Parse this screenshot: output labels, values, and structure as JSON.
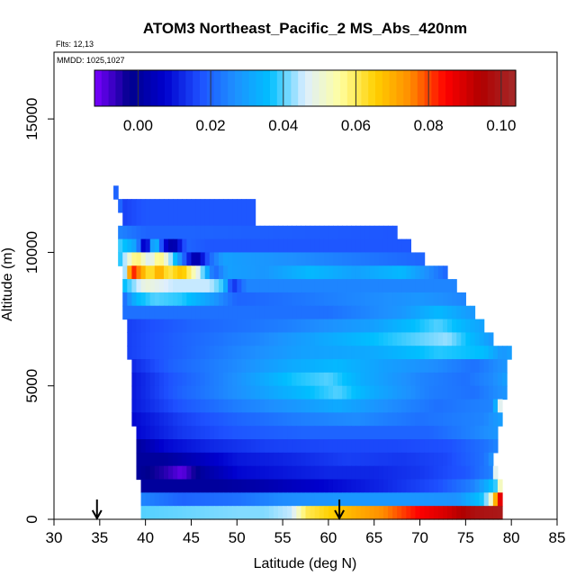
{
  "chart_data": {
    "type": "heatmap",
    "title": "ATOM3 Northeast_Pacific_2 MS_Abs_420nm",
    "flights_label": "Flts: 12,13",
    "dates_label": "MMDD: 1025,1027",
    "xlabel": "Latitude (deg N)",
    "ylabel": "Altitude (m)",
    "xlim": [
      30,
      85
    ],
    "ylim": [
      0,
      17500
    ],
    "x_ticks": [
      "30",
      "35",
      "40",
      "45",
      "50",
      "55",
      "60",
      "65",
      "70",
      "75",
      "80",
      "85"
    ],
    "y_ticks": [
      "0",
      "5000",
      "10000",
      "15000"
    ],
    "colorbar": {
      "range": [
        -0.012,
        0.104
      ],
      "ticks": [
        "0.00",
        "0.02",
        "0.04",
        "0.06",
        "0.08",
        "0.10"
      ],
      "colors": [
        "#7a00ff",
        "#00008c",
        "#0000cd",
        "#1e50ff",
        "#1e90ff",
        "#00bfff",
        "#ddeeff",
        "#ffffa0",
        "#ffd000",
        "#ff8c00",
        "#ff0000",
        "#b00000",
        "#a52a2a"
      ]
    },
    "flight_markers_latitude": [
      34.7,
      61.2
    ],
    "altitude_bands": [
      {
        "alt_min": 12000,
        "alt_max": 12500,
        "lat_min": 36.5,
        "lat_max": 37.0,
        "values": [
          [
            36.5,
            0.02
          ]
        ]
      },
      {
        "alt_min": 11500,
        "alt_max": 12000,
        "lat_min": 37.0,
        "lat_max": 37.5,
        "values": [
          [
            37.0,
            0.02
          ]
        ]
      },
      {
        "alt_min": 11000,
        "alt_max": 12000,
        "lat_min": 37.5,
        "lat_max": 52.0,
        "values": [
          [
            37.5,
            0.015
          ],
          [
            40,
            0.018
          ],
          [
            52,
            0.018
          ]
        ]
      },
      {
        "alt_min": 10500,
        "alt_max": 11000,
        "lat_min": 37.0,
        "lat_max": 67.5,
        "values": [
          [
            37,
            0.025
          ],
          [
            40,
            0.02
          ],
          [
            45,
            0.02
          ],
          [
            67.5,
            0.018
          ]
        ]
      },
      {
        "alt_min": 10000,
        "alt_max": 10500,
        "lat_min": 37.0,
        "lat_max": 69.0,
        "values": [
          [
            37,
            0.04
          ],
          [
            39,
            0.03
          ],
          [
            40,
            0.0
          ],
          [
            41,
            0.04
          ],
          [
            42,
            0.01
          ],
          [
            43,
            0.0
          ],
          [
            44.5,
            0.02
          ],
          [
            47,
            0.018
          ],
          [
            69,
            0.018
          ]
        ]
      },
      {
        "alt_min": 9500,
        "alt_max": 10000,
        "lat_min": 37.0,
        "lat_max": 70.5,
        "values": [
          [
            37,
            0.035
          ],
          [
            39,
            0.06
          ],
          [
            40.5,
            0.045
          ],
          [
            41.5,
            0.06
          ],
          [
            43,
            0.04
          ],
          [
            44.5,
            0.015
          ],
          [
            45.5,
            0.0
          ],
          [
            47,
            0.02
          ],
          [
            48.5,
            0.03
          ],
          [
            70.5,
            0.02
          ]
        ]
      },
      {
        "alt_min": 9000,
        "alt_max": 9500,
        "lat_min": 37.5,
        "lat_max": 73.0,
        "values": [
          [
            37.5,
            0.03
          ],
          [
            38.5,
            0.085
          ],
          [
            40.5,
            0.06
          ],
          [
            41.5,
            0.072
          ],
          [
            42.5,
            0.06
          ],
          [
            44,
            0.068
          ],
          [
            46,
            0.045
          ],
          [
            47.5,
            0.02
          ],
          [
            49,
            0.03
          ],
          [
            53,
            0.028
          ],
          [
            58,
            0.035
          ],
          [
            63,
            0.03
          ],
          [
            68,
            0.035
          ],
          [
            73,
            0.02
          ]
        ]
      },
      {
        "alt_min": 8500,
        "alt_max": 9000,
        "lat_min": 37.5,
        "lat_max": 74.0,
        "values": [
          [
            37.5,
            0.035
          ],
          [
            40,
            0.05
          ],
          [
            43,
            0.045
          ],
          [
            47,
            0.045
          ],
          [
            48.5,
            0.038
          ],
          [
            49.5,
            0.012
          ],
          [
            51,
            0.025
          ],
          [
            55,
            0.025
          ],
          [
            74,
            0.025
          ]
        ]
      },
      {
        "alt_min": 8000,
        "alt_max": 8500,
        "lat_min": 37.5,
        "lat_max": 75.0,
        "values": [
          [
            37.5,
            0.02
          ],
          [
            39,
            0.035
          ],
          [
            41,
            0.04
          ],
          [
            44,
            0.038
          ],
          [
            47,
            0.03
          ],
          [
            50,
            0.02
          ],
          [
            55,
            0.022
          ],
          [
            62,
            0.025
          ],
          [
            70,
            0.028
          ],
          [
            75,
            0.025
          ]
        ]
      },
      {
        "alt_min": 7500,
        "alt_max": 8000,
        "lat_min": 37.5,
        "lat_max": 76.0,
        "values": [
          [
            37.5,
            0.022
          ],
          [
            42,
            0.022
          ],
          [
            60,
            0.022
          ],
          [
            68,
            0.028
          ],
          [
            72,
            0.035
          ],
          [
            76,
            0.028
          ]
        ]
      },
      {
        "alt_min": 7000,
        "alt_max": 7500,
        "lat_min": 38.0,
        "lat_max": 77.0,
        "values": [
          [
            38,
            0.015
          ],
          [
            45,
            0.02
          ],
          [
            55,
            0.024
          ],
          [
            65,
            0.03
          ],
          [
            72,
            0.04
          ],
          [
            77,
            0.03
          ]
        ]
      },
      {
        "alt_min": 6500,
        "alt_max": 7000,
        "lat_min": 38.0,
        "lat_max": 78.0,
        "values": [
          [
            38,
            0.015
          ],
          [
            44,
            0.02
          ],
          [
            52,
            0.025
          ],
          [
            60,
            0.032
          ],
          [
            67,
            0.038
          ],
          [
            73,
            0.043
          ],
          [
            78,
            0.028
          ]
        ]
      },
      {
        "alt_min": 6000,
        "alt_max": 6500,
        "lat_min": 38.0,
        "lat_max": 80.0,
        "values": [
          [
            38,
            0.015
          ],
          [
            44,
            0.02
          ],
          [
            50,
            0.025
          ],
          [
            57,
            0.03
          ],
          [
            65,
            0.032
          ],
          [
            72,
            0.038
          ],
          [
            77,
            0.036
          ],
          [
            79,
            0.028
          ],
          [
            80,
            0.03
          ]
        ]
      },
      {
        "alt_min": 5500,
        "alt_max": 6000,
        "lat_min": 38.5,
        "lat_max": 79.5,
        "values": [
          [
            38.5,
            0.012
          ],
          [
            43,
            0.02
          ],
          [
            50,
            0.026
          ],
          [
            56,
            0.032
          ],
          [
            61,
            0.035
          ],
          [
            66,
            0.03
          ],
          [
            72,
            0.026
          ],
          [
            76,
            0.022
          ],
          [
            79.5,
            0.028
          ]
        ]
      },
      {
        "alt_min": 5000,
        "alt_max": 5500,
        "lat_min": 38.5,
        "lat_max": 79.5,
        "values": [
          [
            38.5,
            0.01
          ],
          [
            43,
            0.018
          ],
          [
            50,
            0.027
          ],
          [
            56,
            0.037
          ],
          [
            60,
            0.04
          ],
          [
            64,
            0.032
          ],
          [
            70,
            0.025
          ],
          [
            75,
            0.022
          ],
          [
            78,
            0.026
          ],
          [
            79.5,
            0.03
          ]
        ]
      },
      {
        "alt_min": 4500,
        "alt_max": 5000,
        "lat_min": 38.5,
        "lat_max": 79.5,
        "values": [
          [
            38.5,
            0.01
          ],
          [
            44,
            0.02
          ],
          [
            51,
            0.028
          ],
          [
            57,
            0.035
          ],
          [
            61,
            0.04
          ],
          [
            65,
            0.032
          ],
          [
            71,
            0.024
          ],
          [
            76,
            0.022
          ],
          [
            79.5,
            0.028
          ]
        ]
      },
      {
        "alt_min": 4000,
        "alt_max": 4500,
        "lat_min": 38.5,
        "lat_max": 79.0,
        "values": [
          [
            38.5,
            0.01
          ],
          [
            44,
            0.018
          ],
          [
            50,
            0.024
          ],
          [
            56,
            0.028
          ],
          [
            61,
            0.032
          ],
          [
            66,
            0.027
          ],
          [
            72,
            0.022
          ],
          [
            78,
            0.025
          ],
          [
            79,
            0.055
          ]
        ]
      },
      {
        "alt_min": 3500,
        "alt_max": 4000,
        "lat_min": 38.5,
        "lat_max": 79.0,
        "values": [
          [
            38.5,
            0.008
          ],
          [
            44,
            0.015
          ],
          [
            50,
            0.02
          ],
          [
            57,
            0.024
          ],
          [
            63,
            0.026
          ],
          [
            70,
            0.022
          ],
          [
            77,
            0.025
          ],
          [
            79,
            0.03
          ]
        ]
      },
      {
        "alt_min": 3000,
        "alt_max": 3500,
        "lat_min": 39.0,
        "lat_max": 78.5,
        "values": [
          [
            39,
            0.008
          ],
          [
            44,
            0.014
          ],
          [
            50,
            0.018
          ],
          [
            57,
            0.02
          ],
          [
            64,
            0.02
          ],
          [
            71,
            0.02
          ],
          [
            76,
            0.025
          ],
          [
            78.5,
            0.028
          ]
        ]
      },
      {
        "alt_min": 2500,
        "alt_max": 3000,
        "lat_min": 39.0,
        "lat_max": 78.5,
        "values": [
          [
            39,
            0.0
          ],
          [
            42,
            0.008
          ],
          [
            47,
            0.012
          ],
          [
            53,
            0.015
          ],
          [
            60,
            0.016
          ],
          [
            67,
            0.016
          ],
          [
            73,
            0.017
          ],
          [
            77,
            0.022
          ],
          [
            78.5,
            0.025
          ]
        ]
      },
      {
        "alt_min": 2000,
        "alt_max": 2500,
        "lat_min": 39.0,
        "lat_max": 78.0,
        "values": [
          [
            39,
            0.0
          ],
          [
            42,
            0.0
          ],
          [
            46,
            0.005
          ],
          [
            50,
            0.01
          ],
          [
            56,
            0.012
          ],
          [
            62,
            0.015
          ],
          [
            68,
            0.014
          ],
          [
            73,
            0.016
          ],
          [
            77,
            0.022
          ],
          [
            78,
            0.028
          ]
        ]
      },
      {
        "alt_min": 1500,
        "alt_max": 2000,
        "lat_min": 39.0,
        "lat_max": 78.5,
        "values": [
          [
            39,
            0.0
          ],
          [
            42,
            -0.005
          ],
          [
            44,
            -0.01
          ],
          [
            46,
            0.0
          ],
          [
            50,
            0.008
          ],
          [
            55,
            0.01
          ],
          [
            60,
            0.012
          ],
          [
            65,
            0.012
          ],
          [
            70,
            0.014
          ],
          [
            75,
            0.018
          ],
          [
            78,
            0.025
          ],
          [
            78.5,
            0.07
          ]
        ]
      },
      {
        "alt_min": 1000,
        "alt_max": 1500,
        "lat_min": 39.5,
        "lat_max": 79.0,
        "values": [
          [
            39.5,
            0.0
          ],
          [
            44,
            0.0
          ],
          [
            48,
            0.0
          ],
          [
            52,
            0.002
          ],
          [
            56,
            0.005
          ],
          [
            60,
            0.008
          ],
          [
            66,
            0.012
          ],
          [
            72,
            0.017
          ],
          [
            76,
            0.025
          ],
          [
            78.5,
            0.04
          ],
          [
            79,
            0.065
          ]
        ]
      },
      {
        "alt_min": 500,
        "alt_max": 1000,
        "lat_min": 39.5,
        "lat_max": 79.0,
        "values": [
          [
            39.5,
            0.025
          ],
          [
            44,
            0.02
          ],
          [
            50,
            0.022
          ],
          [
            55,
            0.026
          ],
          [
            62,
            0.028
          ],
          [
            68,
            0.028
          ],
          [
            74,
            0.027
          ],
          [
            77,
            0.038
          ],
          [
            78,
            0.055
          ],
          [
            78.5,
            0.085
          ],
          [
            79,
            0.09
          ]
        ]
      },
      {
        "alt_min": 0,
        "alt_max": 500,
        "lat_min": 39.5,
        "lat_max": 79.0,
        "values": [
          [
            39.5,
            0.04
          ],
          [
            50,
            0.042
          ],
          [
            53,
            0.042
          ],
          [
            56,
            0.045
          ],
          [
            57.5,
            0.06
          ],
          [
            60,
            0.065
          ],
          [
            63,
            0.07
          ],
          [
            66,
            0.075
          ],
          [
            70,
            0.085
          ],
          [
            73,
            0.09
          ],
          [
            76,
            0.098
          ],
          [
            79,
            0.1
          ]
        ]
      }
    ]
  }
}
